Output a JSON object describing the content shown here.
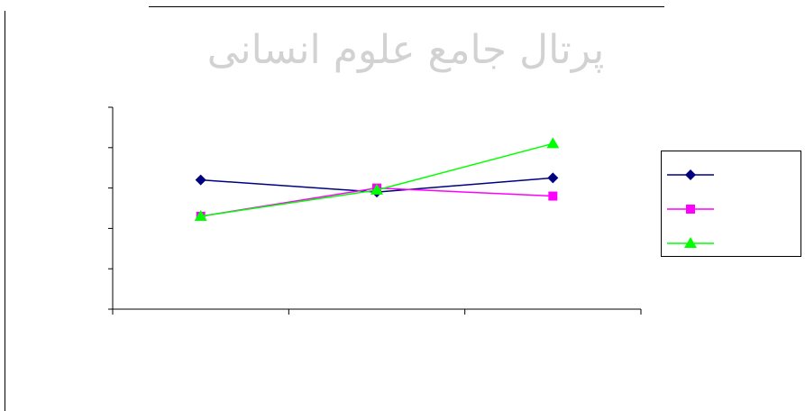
{
  "watermark_text": "پرتال جامع علوم انسانی",
  "chart_data": {
    "type": "line",
    "title": "",
    "xlabel": "",
    "ylabel": "",
    "categories": [
      "",
      "",
      ""
    ],
    "ylim": [
      0,
      5
    ],
    "grid": false,
    "legend_position": "right",
    "series": [
      {
        "values": [
          3.2,
          2.9,
          3.25
        ],
        "color": "#000080",
        "marker": "diamond"
      },
      {
        "values": [
          2.3,
          3.0,
          2.8
        ],
        "color": "#ff00ff",
        "marker": "square"
      },
      {
        "values": [
          2.3,
          2.95,
          4.1
        ],
        "color": "#00ff00",
        "marker": "triangle"
      }
    ]
  }
}
